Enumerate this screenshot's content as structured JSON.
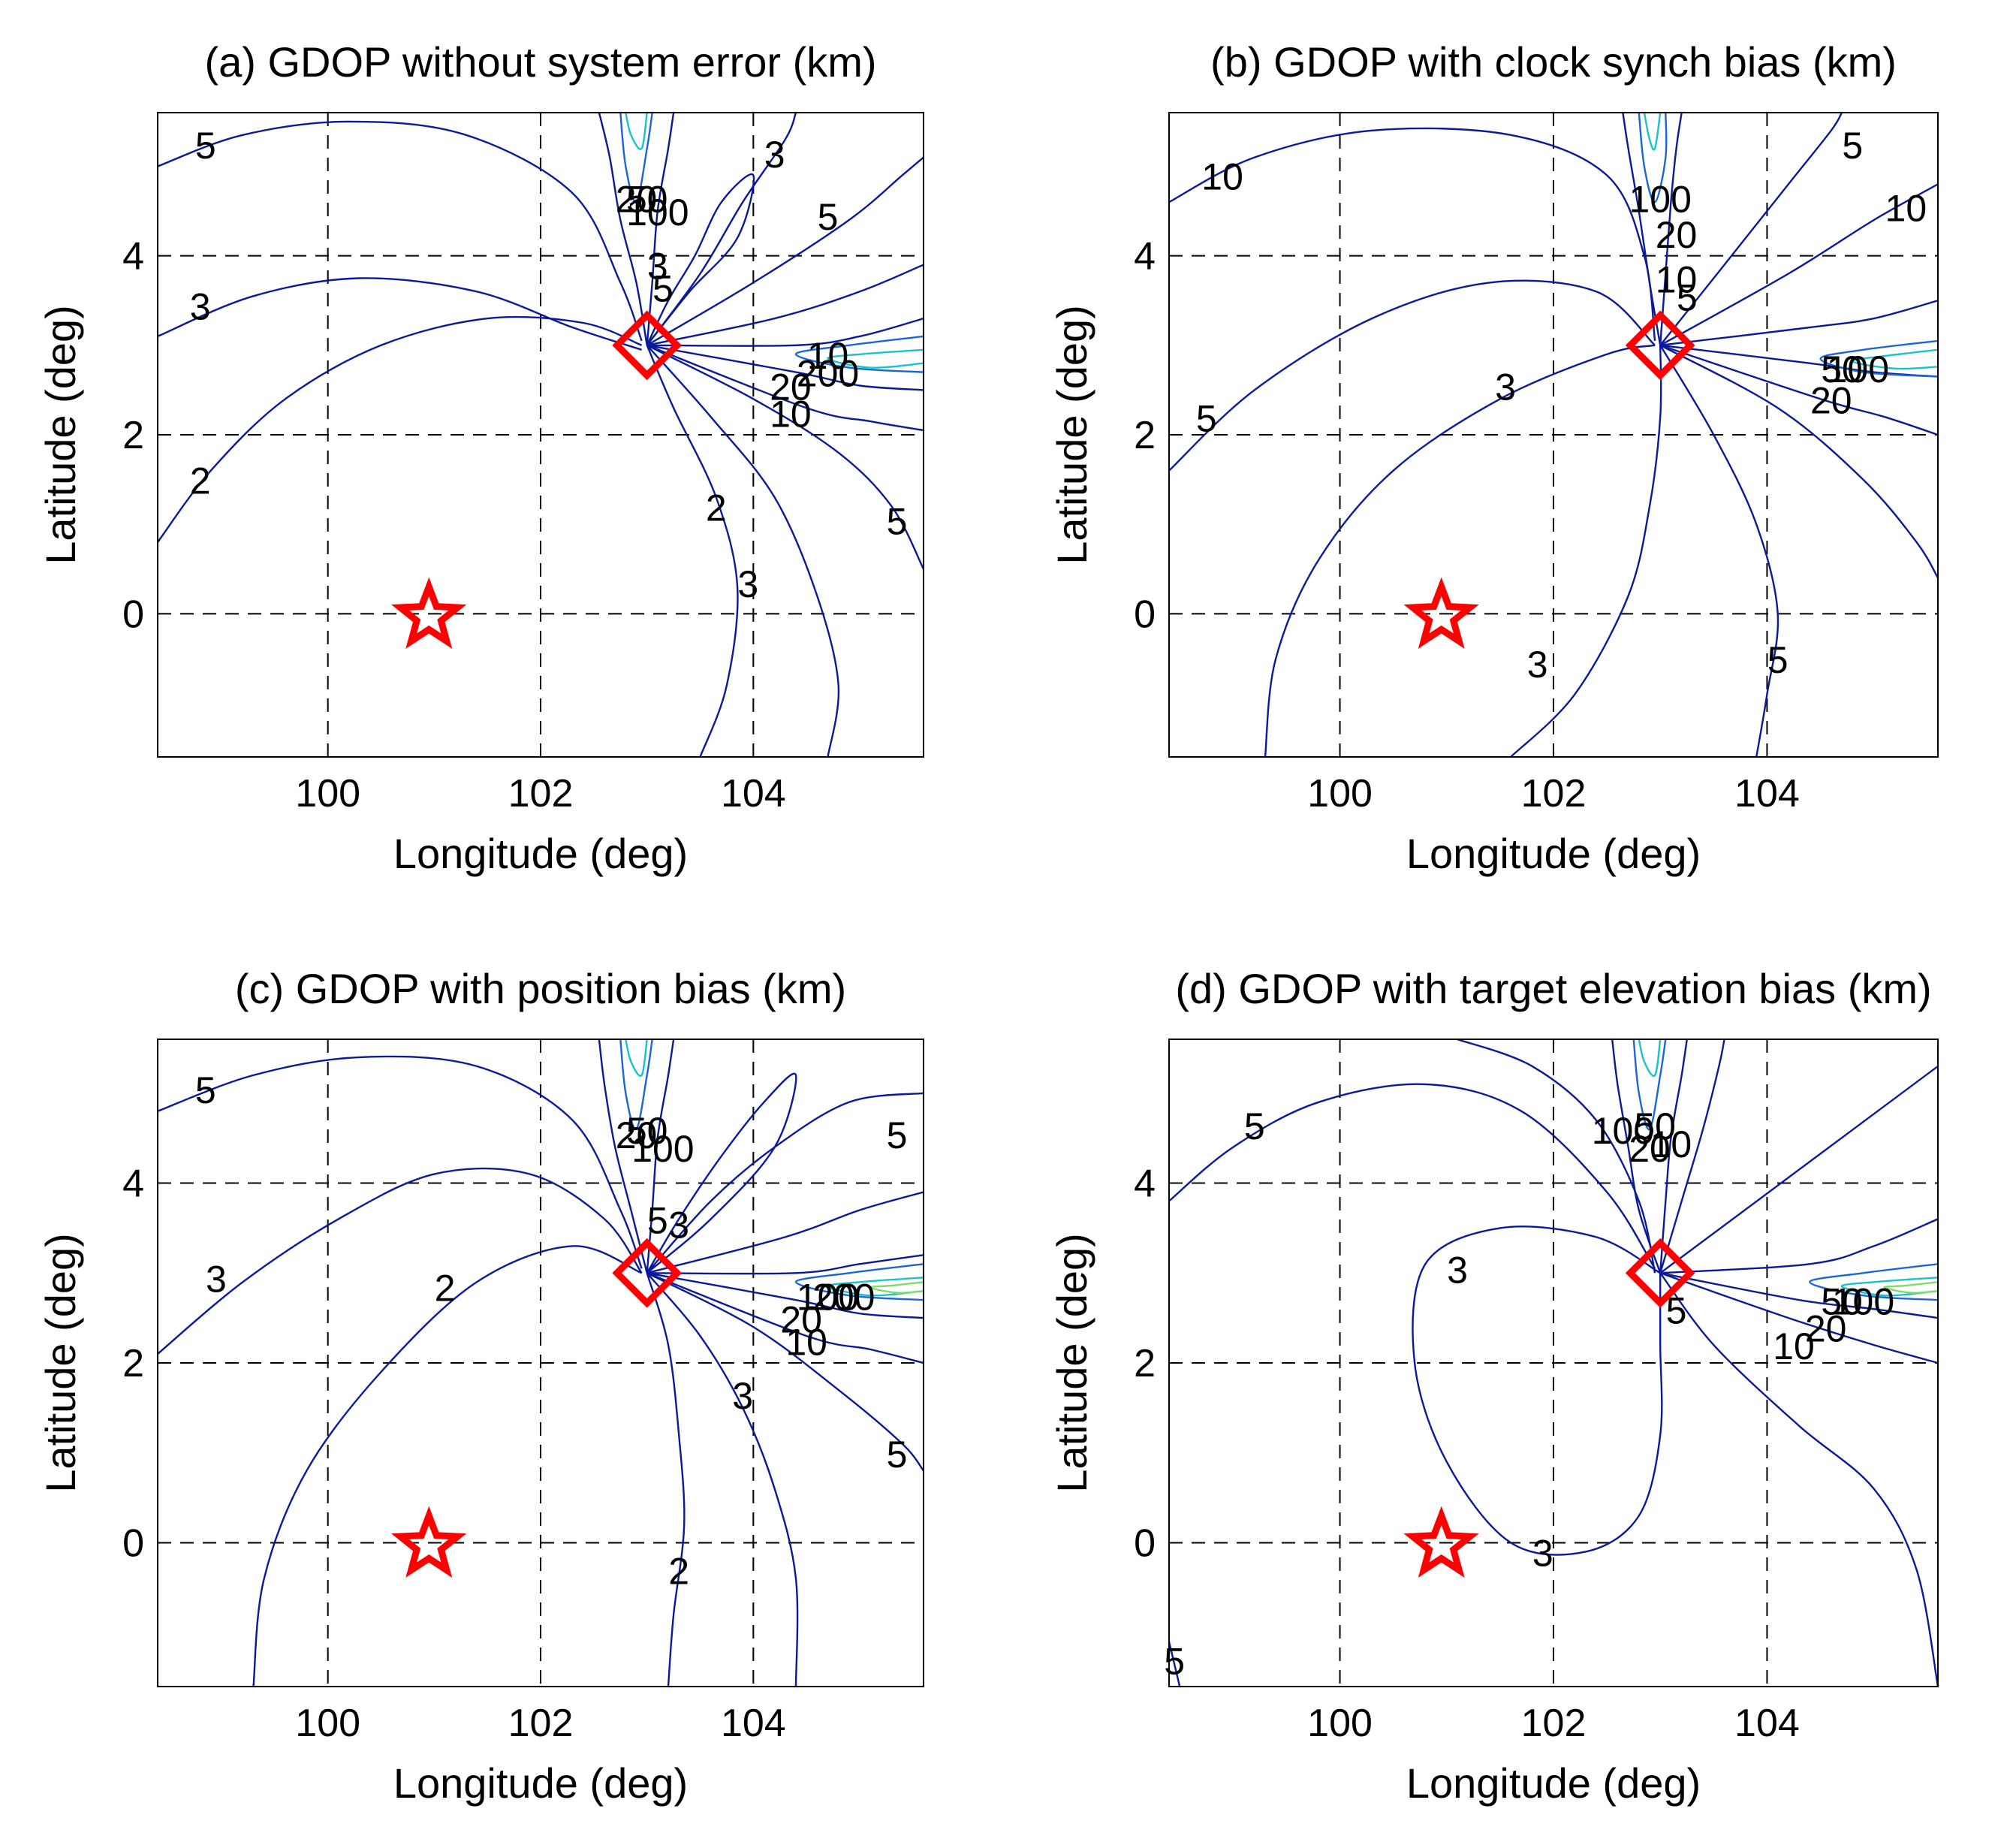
{
  "chart_data": [
    {
      "type": "contour",
      "title": "(a) GDOP without system error (km)",
      "xlabel": "Longitude (deg)",
      "ylabel": "Latitude (deg)",
      "xlim": [
        98.4,
        105.6
      ],
      "ylim": [
        -1.6,
        5.6
      ],
      "xticks": [
        100,
        102,
        104
      ],
      "yticks": [
        0,
        2,
        4
      ],
      "grid": true,
      "target": {
        "lon": 100.95,
        "lat": 0.0
      },
      "station": {
        "lon": 103.0,
        "lat": 3.0
      },
      "contour_labels": [
        {
          "text": "5",
          "lon": 98.85,
          "lat": 5.2
        },
        {
          "text": "3",
          "lon": 98.8,
          "lat": 3.4
        },
        {
          "text": "2",
          "lon": 98.8,
          "lat": 1.45
        },
        {
          "text": "3",
          "lon": 103.1,
          "lat": 3.85
        },
        {
          "text": "5",
          "lon": 103.15,
          "lat": 3.6
        },
        {
          "text": "20",
          "lon": 102.9,
          "lat": 4.6
        },
        {
          "text": "50",
          "lon": 103.0,
          "lat": 4.6
        },
        {
          "text": "100",
          "lon": 103.1,
          "lat": 4.45
        },
        {
          "text": "3",
          "lon": 104.2,
          "lat": 5.1
        },
        {
          "text": "5",
          "lon": 104.7,
          "lat": 4.4
        },
        {
          "text": "10",
          "lon": 104.7,
          "lat": 2.85
        },
        {
          "text": "200",
          "lon": 104.7,
          "lat": 2.65
        },
        {
          "text": "20",
          "lon": 104.35,
          "lat": 2.5
        },
        {
          "text": "10",
          "lon": 104.35,
          "lat": 2.2
        },
        {
          "text": "2",
          "lon": 103.65,
          "lat": 1.15
        },
        {
          "text": "3",
          "lon": 103.95,
          "lat": 0.3
        },
        {
          "text": "5",
          "lon": 105.35,
          "lat": 1.0
        }
      ]
    },
    {
      "type": "contour",
      "title": "(b) GDOP with clock synch bias (km)",
      "xlabel": "Longitude (deg)",
      "ylabel": "Latitude (deg)",
      "xlim": [
        98.4,
        105.6
      ],
      "ylim": [
        -1.6,
        5.6
      ],
      "xticks": [
        100,
        102,
        104
      ],
      "yticks": [
        0,
        2,
        4
      ],
      "grid": true,
      "target": {
        "lon": 100.95,
        "lat": 0.0
      },
      "station": {
        "lon": 103.0,
        "lat": 3.0
      },
      "contour_labels": [
        {
          "text": "10",
          "lon": 98.9,
          "lat": 4.85
        },
        {
          "text": "5",
          "lon": 98.75,
          "lat": 2.15
        },
        {
          "text": "3",
          "lon": 101.55,
          "lat": 2.5
        },
        {
          "text": "3",
          "lon": 101.85,
          "lat": -0.6
        },
        {
          "text": "100",
          "lon": 103.0,
          "lat": 4.6
        },
        {
          "text": "20",
          "lon": 103.15,
          "lat": 4.2
        },
        {
          "text": "10",
          "lon": 103.15,
          "lat": 3.7
        },
        {
          "text": "5",
          "lon": 103.25,
          "lat": 3.5
        },
        {
          "text": "5",
          "lon": 104.8,
          "lat": 5.2
        },
        {
          "text": "10",
          "lon": 105.3,
          "lat": 4.5
        },
        {
          "text": "50",
          "lon": 104.7,
          "lat": 2.7
        },
        {
          "text": "100",
          "lon": 104.85,
          "lat": 2.7
        },
        {
          "text": "20",
          "lon": 104.6,
          "lat": 2.35
        },
        {
          "text": "5",
          "lon": 104.1,
          "lat": -0.55
        }
      ]
    },
    {
      "type": "contour",
      "title": "(c) GDOP with position bias (km)",
      "xlabel": "Longitude (deg)",
      "ylabel": "Latitude (deg)",
      "xlim": [
        98.4,
        105.6
      ],
      "ylim": [
        -1.6,
        5.6
      ],
      "xticks": [
        100,
        102,
        104
      ],
      "yticks": [
        0,
        2,
        4
      ],
      "grid": true,
      "target": {
        "lon": 100.95,
        "lat": 0.0
      },
      "station": {
        "lon": 103.0,
        "lat": 3.0
      },
      "contour_labels": [
        {
          "text": "5",
          "lon": 98.85,
          "lat": 5.0
        },
        {
          "text": "3",
          "lon": 98.95,
          "lat": 2.9
        },
        {
          "text": "2",
          "lon": 101.1,
          "lat": 2.8
        },
        {
          "text": "20",
          "lon": 102.9,
          "lat": 4.5
        },
        {
          "text": "50",
          "lon": 103.0,
          "lat": 4.55
        },
        {
          "text": "100",
          "lon": 103.15,
          "lat": 4.35
        },
        {
          "text": "5",
          "lon": 103.1,
          "lat": 3.55
        },
        {
          "text": "3",
          "lon": 103.3,
          "lat": 3.5
        },
        {
          "text": "5",
          "lon": 105.35,
          "lat": 4.5
        },
        {
          "text": "100",
          "lon": 104.7,
          "lat": 2.7
        },
        {
          "text": "200",
          "lon": 104.85,
          "lat": 2.7
        },
        {
          "text": "20",
          "lon": 104.45,
          "lat": 2.45
        },
        {
          "text": "10",
          "lon": 104.5,
          "lat": 2.2
        },
        {
          "text": "3",
          "lon": 103.9,
          "lat": 1.6
        },
        {
          "text": "2",
          "lon": 103.3,
          "lat": -0.35
        },
        {
          "text": "5",
          "lon": 105.35,
          "lat": 0.95
        }
      ]
    },
    {
      "type": "contour",
      "title": "(d) GDOP with target elevation bias (km)",
      "xlabel": "Longitude (deg)",
      "ylabel": "Latitude (deg)",
      "xlim": [
        98.4,
        105.6
      ],
      "ylim": [
        -1.6,
        5.6
      ],
      "xticks": [
        100,
        102,
        104
      ],
      "yticks": [
        0,
        2,
        4
      ],
      "grid": true,
      "target": {
        "lon": 100.95,
        "lat": 0.0
      },
      "station": {
        "lon": 103.0,
        "lat": 3.0
      },
      "contour_labels": [
        {
          "text": "5",
          "lon": 99.2,
          "lat": 4.6
        },
        {
          "text": "3",
          "lon": 101.1,
          "lat": 3.0
        },
        {
          "text": "3",
          "lon": 101.9,
          "lat": -0.15
        },
        {
          "text": "100",
          "lon": 102.65,
          "lat": 4.55
        },
        {
          "text": "50",
          "lon": 102.95,
          "lat": 4.6
        },
        {
          "text": "20",
          "lon": 102.9,
          "lat": 4.35
        },
        {
          "text": "10",
          "lon": 103.1,
          "lat": 4.4
        },
        {
          "text": "5",
          "lon": 103.15,
          "lat": 2.55
        },
        {
          "text": "50",
          "lon": 104.7,
          "lat": 2.65
        },
        {
          "text": "100",
          "lon": 104.9,
          "lat": 2.65
        },
        {
          "text": "20",
          "lon": 104.55,
          "lat": 2.35
        },
        {
          "text": "10",
          "lon": 104.25,
          "lat": 2.15
        },
        {
          "text": "5",
          "lon": 98.45,
          "lat": -1.35
        }
      ]
    }
  ]
}
